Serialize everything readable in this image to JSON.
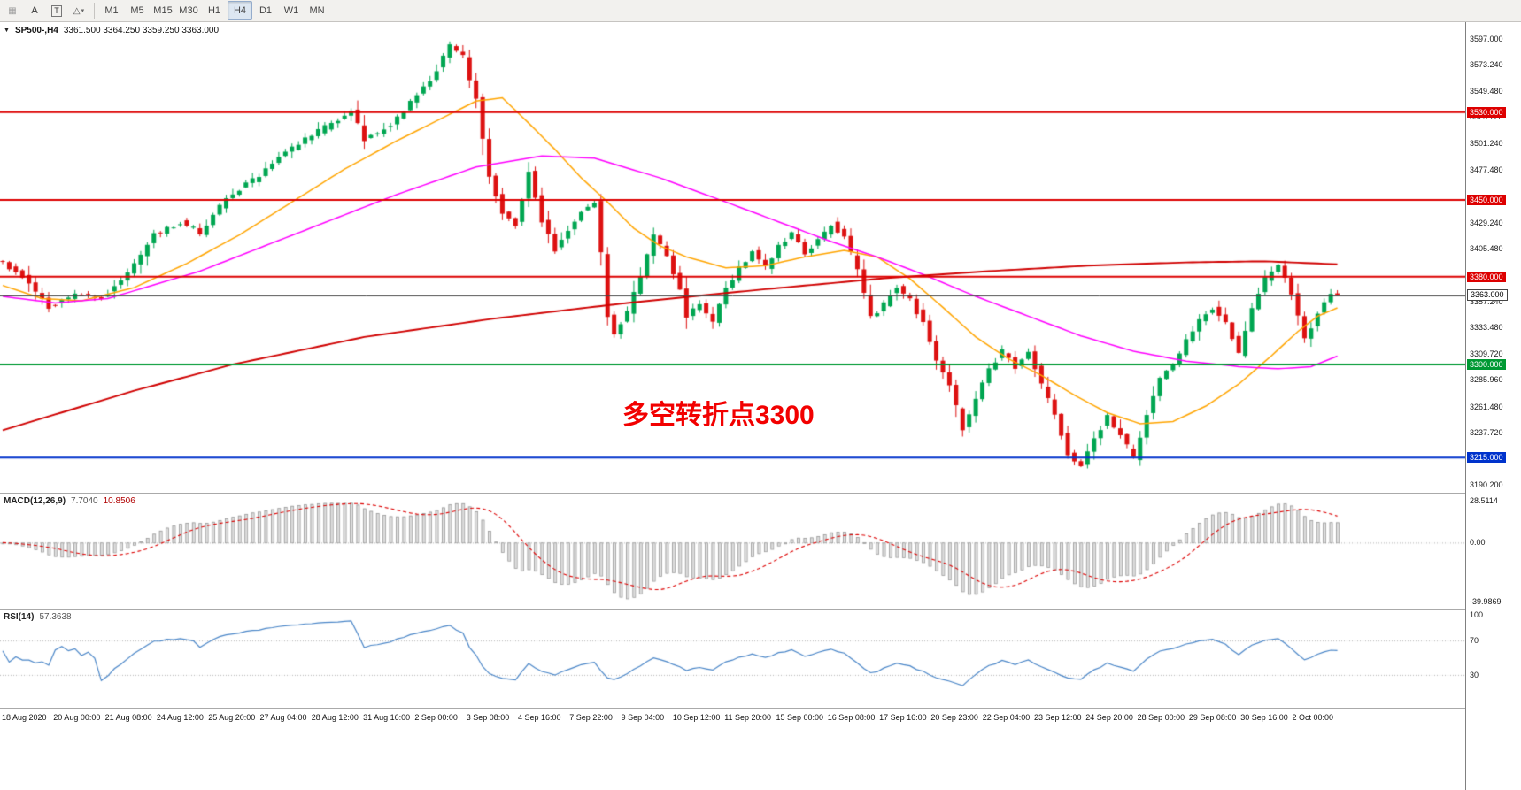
{
  "icons": {
    "cropped": "▦",
    "shapes": "△",
    "caret": "▾",
    "chart_marker": "▼"
  },
  "toolbar": {
    "annotation_tool": "A",
    "text_tool": "T",
    "timeframes": [
      "M1",
      "M5",
      "M15",
      "M30",
      "H1",
      "H4",
      "D1",
      "W1",
      "MN"
    ],
    "active_timeframe": "H4"
  },
  "chart": {
    "symbol": "SP500-,H4",
    "ohlc_text": "3361.500 3364.250 3359.250 3363.000",
    "annotation": {
      "text": "多空转折点3300",
      "color": "#f20000"
    },
    "current_price": {
      "value": 3363.0,
      "label": "3363.000"
    },
    "hlines": [
      {
        "value": 3530,
        "label": "3530.000",
        "color": "#dd0000"
      },
      {
        "value": 3450,
        "label": "3450.000",
        "color": "#dd0000"
      },
      {
        "value": 3380,
        "label": "3380.000",
        "color": "#dd0000"
      },
      {
        "value": 3300,
        "label": "3300.000",
        "color": "#009933"
      },
      {
        "value": 3215,
        "label": "3215.000",
        "color": "#0033cc"
      }
    ],
    "y_ticks": [
      "3597.000",
      "3573.240",
      "3549.480",
      "3525.720",
      "3501.240",
      "3477.480",
      "3429.240",
      "3405.480",
      "3357.240",
      "3333.480",
      "3309.720",
      "3285.960",
      "3261.480",
      "3237.720",
      "3190.200"
    ],
    "y_range": [
      3183,
      3612
    ],
    "x_labels": [
      "18 Aug 2020",
      "20 Aug 00:00",
      "21 Aug 08:00",
      "24 Aug 12:00",
      "25 Aug 20:00",
      "27 Aug 04:00",
      "28 Aug 12:00",
      "31 Aug 16:00",
      "2 Sep 00:00",
      "3 Sep 08:00",
      "4 Sep 16:00",
      "7 Sep 22:00",
      "9 Sep 04:00",
      "10 Sep 12:00",
      "11 Sep 20:00",
      "15 Sep 00:00",
      "16 Sep 08:00",
      "17 Sep 16:00",
      "20 Sep 23:00",
      "22 Sep 04:00",
      "23 Sep 12:00",
      "24 Sep 20:00",
      "28 Sep 00:00",
      "29 Sep 08:00",
      "30 Sep 16:00",
      "2 Oct 00:00"
    ]
  },
  "indicators": {
    "macd": {
      "label": "MACD(12,26,9)",
      "main_value": "7.7040",
      "signal_value": "10.8506",
      "axis_labels": [
        "28.5114",
        "0.00",
        "-39.9869"
      ]
    },
    "rsi": {
      "label": "RSI(14)",
      "value": "57.3638",
      "axis_labels": [
        "100",
        "70",
        "30"
      ],
      "levels": [
        70,
        30
      ]
    }
  },
  "chart_data": {
    "type": "candlestick",
    "symbol": "SP500",
    "timeframe": "H4",
    "bars": 204,
    "final_close": 3363.0,
    "up_color": "#00a651",
    "down_color": "#dd1111",
    "price_path": [
      [
        0,
        3396
      ],
      [
        4,
        3380
      ],
      [
        8,
        3352
      ],
      [
        12,
        3365
      ],
      [
        16,
        3360
      ],
      [
        20,
        3382
      ],
      [
        24,
        3418
      ],
      [
        28,
        3430
      ],
      [
        31,
        3420
      ],
      [
        35,
        3452
      ],
      [
        39,
        3468
      ],
      [
        43,
        3488
      ],
      [
        47,
        3505
      ],
      [
        51,
        3520
      ],
      [
        54,
        3532
      ],
      [
        56,
        3505
      ],
      [
        60,
        3518
      ],
      [
        63,
        3540
      ],
      [
        66,
        3558
      ],
      [
        69,
        3590
      ],
      [
        71,
        3580
      ],
      [
        73,
        3542
      ],
      [
        75,
        3470
      ],
      [
        77,
        3438
      ],
      [
        79,
        3428
      ],
      [
        81,
        3475
      ],
      [
        83,
        3430
      ],
      [
        85,
        3405
      ],
      [
        87,
        3422
      ],
      [
        89,
        3440
      ],
      [
        91,
        3448
      ],
      [
        92,
        3400
      ],
      [
        93,
        3345
      ],
      [
        94,
        3328
      ],
      [
        96,
        3348
      ],
      [
        98,
        3382
      ],
      [
        100,
        3418
      ],
      [
        102,
        3398
      ],
      [
        104,
        3368
      ],
      [
        105,
        3342
      ],
      [
        107,
        3356
      ],
      [
        109,
        3338
      ],
      [
        111,
        3368
      ],
      [
        113,
        3388
      ],
      [
        115,
        3402
      ],
      [
        117,
        3388
      ],
      [
        119,
        3408
      ],
      [
        121,
        3420
      ],
      [
        123,
        3402
      ],
      [
        125,
        3412
      ],
      [
        127,
        3428
      ],
      [
        129,
        3415
      ],
      [
        131,
        3388
      ],
      [
        133,
        3342
      ],
      [
        135,
        3355
      ],
      [
        137,
        3372
      ],
      [
        139,
        3358
      ],
      [
        141,
        3338
      ],
      [
        143,
        3302
      ],
      [
        145,
        3282
      ],
      [
        147,
        3242
      ],
      [
        149,
        3268
      ],
      [
        151,
        3295
      ],
      [
        153,
        3312
      ],
      [
        155,
        3298
      ],
      [
        157,
        3312
      ],
      [
        159,
        3282
      ],
      [
        161,
        3255
      ],
      [
        163,
        3218
      ],
      [
        165,
        3208
      ],
      [
        167,
        3232
      ],
      [
        169,
        3252
      ],
      [
        171,
        3235
      ],
      [
        173,
        3215
      ],
      [
        175,
        3255
      ],
      [
        177,
        3288
      ],
      [
        179,
        3298
      ],
      [
        181,
        3322
      ],
      [
        183,
        3340
      ],
      [
        185,
        3352
      ],
      [
        187,
        3340
      ],
      [
        189,
        3310
      ],
      [
        191,
        3352
      ],
      [
        193,
        3378
      ],
      [
        195,
        3392
      ],
      [
        197,
        3365
      ],
      [
        199,
        3322
      ],
      [
        200,
        3335
      ],
      [
        202,
        3355
      ],
      [
        203,
        3363
      ]
    ],
    "moving_averages": [
      {
        "name": "ma-fast",
        "color": "#ffa500",
        "points": [
          [
            0,
            3372
          ],
          [
            6,
            3360
          ],
          [
            12,
            3358
          ],
          [
            20,
            3370
          ],
          [
            28,
            3392
          ],
          [
            36,
            3418
          ],
          [
            44,
            3448
          ],
          [
            52,
            3478
          ],
          [
            60,
            3504
          ],
          [
            66,
            3522
          ],
          [
            72,
            3540
          ],
          [
            76,
            3543
          ],
          [
            80,
            3520
          ],
          [
            84,
            3496
          ],
          [
            88,
            3470
          ],
          [
            92,
            3448
          ],
          [
            96,
            3424
          ],
          [
            100,
            3408
          ],
          [
            104,
            3398
          ],
          [
            110,
            3388
          ],
          [
            116,
            3390
          ],
          [
            122,
            3398
          ],
          [
            128,
            3404
          ],
          [
            133,
            3398
          ],
          [
            138,
            3378
          ],
          [
            143,
            3352
          ],
          [
            148,
            3325
          ],
          [
            153,
            3305
          ],
          [
            158,
            3290
          ],
          [
            163,
            3272
          ],
          [
            168,
            3256
          ],
          [
            173,
            3246
          ],
          [
            178,
            3248
          ],
          [
            183,
            3262
          ],
          [
            188,
            3282
          ],
          [
            193,
            3308
          ],
          [
            197,
            3330
          ],
          [
            200,
            3344
          ],
          [
            204,
            3354
          ]
        ]
      },
      {
        "name": "ma-mid",
        "color": "#ff00ff",
        "points": [
          [
            0,
            3362
          ],
          [
            8,
            3356
          ],
          [
            16,
            3360
          ],
          [
            30,
            3385
          ],
          [
            45,
            3420
          ],
          [
            60,
            3455
          ],
          [
            72,
            3480
          ],
          [
            82,
            3490
          ],
          [
            90,
            3488
          ],
          [
            100,
            3470
          ],
          [
            110,
            3448
          ],
          [
            118,
            3430
          ],
          [
            126,
            3412
          ],
          [
            133,
            3398
          ],
          [
            140,
            3382
          ],
          [
            148,
            3362
          ],
          [
            156,
            3344
          ],
          [
            164,
            3326
          ],
          [
            172,
            3312
          ],
          [
            180,
            3303
          ],
          [
            188,
            3298
          ],
          [
            194,
            3296
          ],
          [
            199,
            3298
          ],
          [
            204,
            3310
          ]
        ]
      },
      {
        "name": "ma-slow",
        "color": "#d00000",
        "points": [
          [
            0,
            3240
          ],
          [
            20,
            3276
          ],
          [
            35,
            3300
          ],
          [
            55,
            3325
          ],
          [
            75,
            3342
          ],
          [
            95,
            3356
          ],
          [
            115,
            3368
          ],
          [
            135,
            3379
          ],
          [
            150,
            3385
          ],
          [
            165,
            3390
          ],
          [
            180,
            3393
          ],
          [
            192,
            3394
          ],
          [
            204,
            3391
          ]
        ]
      }
    ]
  }
}
